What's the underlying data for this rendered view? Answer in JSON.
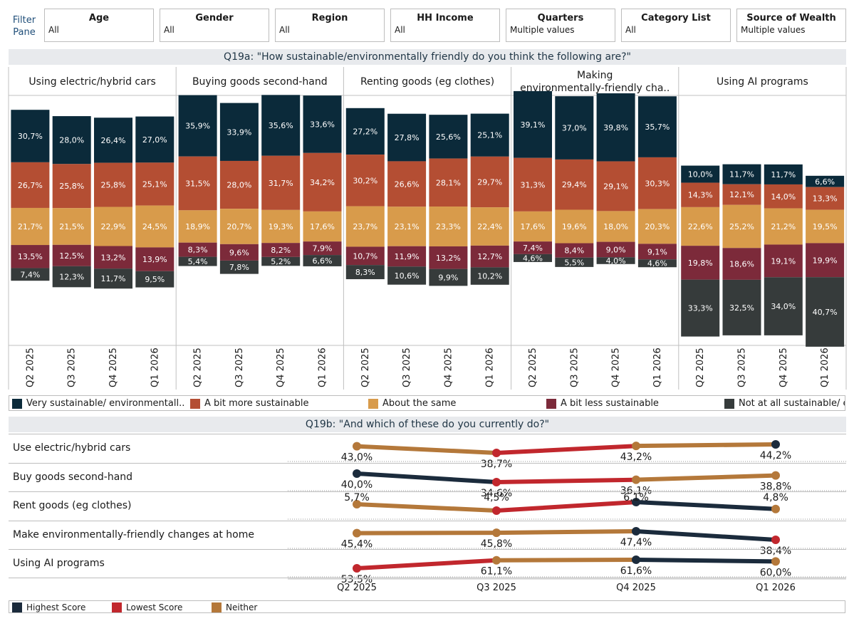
{
  "filter_pane_label": "Filter Pane",
  "filters": [
    {
      "title": "Age",
      "value": "All"
    },
    {
      "title": "Gender",
      "value": "All"
    },
    {
      "title": "Region",
      "value": "All"
    },
    {
      "title": "HH Income",
      "value": "All"
    },
    {
      "title": "Quarters",
      "value": "Multiple values"
    },
    {
      "title": "Category List",
      "value": "All"
    },
    {
      "title": "Source of Wealth",
      "value": "Multiple values"
    }
  ],
  "q19a_title": "Q19a: \"How sustainable/environmentally friendly do you think the following are?\"",
  "q19b_title": "Q19b: \"And which of these do you currently do?\"",
  "colors": {
    "very": "#0b2a3a",
    "bit_more": "#b44e33",
    "same": "#d89b4b",
    "bit_less": "#7c2a3a",
    "not_at_all": "#363b3b",
    "highest": "#1b2b3c",
    "lowest": "#c1272d",
    "neither": "#b4783a"
  },
  "chart_data": [
    {
      "type": "bar",
      "title": "Q19a: \"How sustainable/environmentally friendly do you think the following are?\"",
      "stacked": "diverging",
      "quarters": [
        "Q2 2025",
        "Q3 2025",
        "Q4 2025",
        "Q1 2026"
      ],
      "legend": [
        "Very sustainable/ environmentall..",
        "A bit more sustainable",
        "About the same",
        "A bit less sustainable",
        "Not at all sustainable/ e"
      ],
      "panels": [
        {
          "name": "Using electric/hybrid cars",
          "very": [
            30.7,
            28.0,
            26.4,
            27.0
          ],
          "bit_more": [
            26.7,
            25.8,
            25.8,
            25.1
          ],
          "same": [
            21.7,
            21.5,
            22.9,
            24.5
          ],
          "bit_less": [
            13.5,
            12.5,
            13.2,
            13.9
          ],
          "not_at_all": [
            7.4,
            12.3,
            11.7,
            9.5
          ]
        },
        {
          "name": "Buying goods second-hand",
          "very": [
            35.9,
            33.9,
            35.6,
            33.6
          ],
          "bit_more": [
            31.5,
            28.0,
            31.7,
            34.2
          ],
          "same": [
            18.9,
            20.7,
            19.3,
            17.6
          ],
          "bit_less": [
            8.3,
            9.6,
            8.2,
            7.9
          ],
          "not_at_all": [
            5.4,
            7.8,
            5.2,
            6.6
          ]
        },
        {
          "name": "Renting goods (eg clothes)",
          "very": [
            27.2,
            27.8,
            25.6,
            25.1
          ],
          "bit_more": [
            30.2,
            26.6,
            28.1,
            29.7
          ],
          "same": [
            23.7,
            23.1,
            23.3,
            22.4
          ],
          "bit_less": [
            10.7,
            11.9,
            13.2,
            12.7
          ],
          "not_at_all": [
            8.3,
            10.6,
            9.9,
            10.2
          ]
        },
        {
          "name": "Making environmentally-friendly cha..",
          "very": [
            39.1,
            37.0,
            39.8,
            35.7
          ],
          "bit_more": [
            31.3,
            29.4,
            29.1,
            30.3
          ],
          "same": [
            17.6,
            19.6,
            18.0,
            20.3
          ],
          "bit_less": [
            7.4,
            8.4,
            9.0,
            9.1
          ],
          "not_at_all": [
            4.6,
            5.5,
            4.0,
            4.6
          ]
        },
        {
          "name": "Using AI programs",
          "very": [
            10.0,
            11.7,
            11.7,
            6.6
          ],
          "bit_more": [
            14.3,
            12.1,
            14.0,
            13.3
          ],
          "same": [
            22.6,
            25.2,
            21.2,
            19.5
          ],
          "bit_less": [
            19.8,
            18.6,
            19.1,
            19.9
          ],
          "not_at_all": [
            33.3,
            32.5,
            34.0,
            40.7
          ]
        }
      ]
    },
    {
      "type": "line",
      "title": "Q19b: \"And which of these do you currently do?\"",
      "x": [
        "Q2 2025",
        "Q3 2025",
        "Q4 2025",
        "Q1 2026"
      ],
      "legend": [
        "Highest Score",
        "Lowest Score",
        "Neither"
      ],
      "series": [
        {
          "name": "Use electric/hybrid cars",
          "values": [
            43.0,
            38.7,
            43.2,
            44.2
          ],
          "labels": [
            "43,0%",
            "38,7%",
            "43,2%",
            "44,2%"
          ]
        },
        {
          "name": "Buy goods second-hand",
          "values": [
            40.0,
            34.6,
            36.1,
            38.8
          ],
          "labels": [
            "40,0%",
            "34,6%",
            "36,1%",
            "38,8%"
          ]
        },
        {
          "name": "Rent goods (eg clothes)",
          "values": [
            5.7,
            4.5,
            6.1,
            4.8
          ],
          "labels": [
            "5,7%",
            "4,5%",
            "6,1%",
            "4,8%"
          ]
        },
        {
          "name": "Make environmentally-friendly changes at home",
          "values": [
            45.4,
            45.8,
            47.4,
            38.4
          ],
          "labels": [
            "45,4%",
            "45,8%",
            "47,4%",
            "38,4%"
          ]
        },
        {
          "name": "Using AI programs",
          "values": [
            53.5,
            61.1,
            61.6,
            60.0
          ],
          "labels": [
            "53,5%",
            "61,1%",
            "61,6%",
            "60,0%"
          ]
        }
      ]
    }
  ]
}
